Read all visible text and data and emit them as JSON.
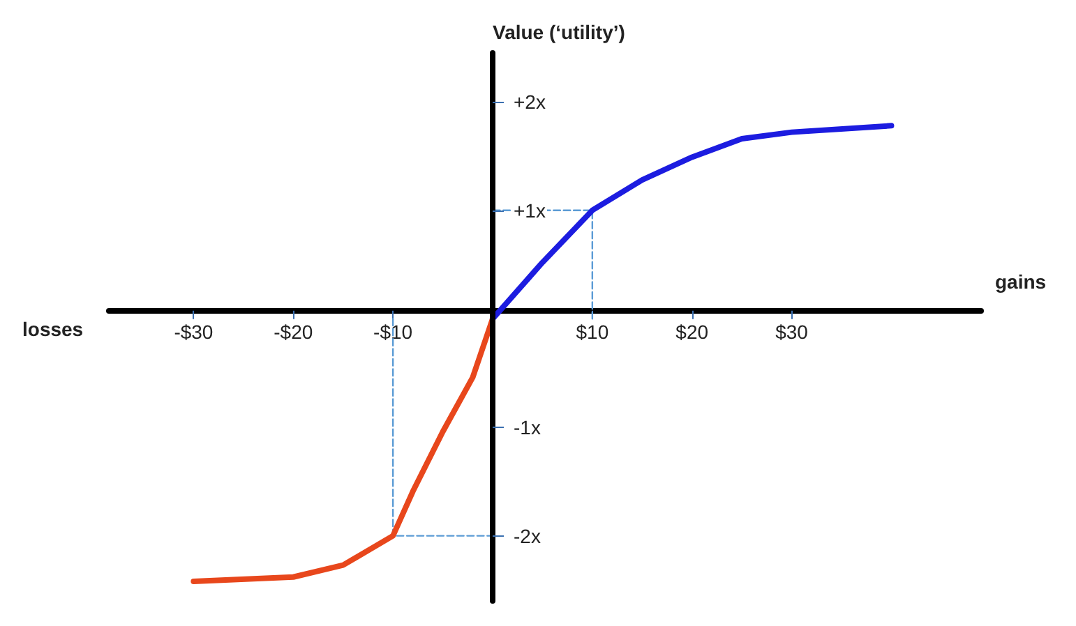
{
  "chart_data": {
    "type": "line",
    "xlabel": "gains",
    "ylabel": "Value (‘utility’)",
    "annotations": [
      "losses"
    ],
    "xlim": [
      -38.5,
      49
    ],
    "ylim": [
      -2.6,
      2.45
    ],
    "xticks": [
      {
        "value": -30,
        "label": "-$30"
      },
      {
        "value": -20,
        "label": "-$20"
      },
      {
        "value": -10,
        "label": "-$10"
      },
      {
        "value": 10,
        "label": "$10"
      },
      {
        "value": 20,
        "label": "$20"
      },
      {
        "value": 30,
        "label": "$30"
      }
    ],
    "yticks": [
      {
        "value": -2,
        "label": "-2x"
      },
      {
        "value": -1,
        "label": "-1x"
      },
      {
        "value": 1,
        "label": "+1x"
      },
      {
        "value": 2,
        "label": "+2x"
      }
    ],
    "grid": false,
    "marker": "none",
    "series": [
      {
        "color": "#1c1ce0",
        "x": [
          0,
          5,
          10,
          15,
          20,
          25,
          30,
          40
        ],
        "values": [
          0,
          0.52,
          1,
          1.28,
          1.49,
          1.66,
          1.72,
          1.78
        ],
        "line_style": "solid"
      },
      {
        "color": "#e8471c",
        "x": [
          -30,
          -20,
          -15,
          -10,
          -8,
          -5,
          -2,
          0
        ],
        "values": [
          -2.42,
          -2.38,
          -2.27,
          -2,
          -1.59,
          -1.04,
          -0.54,
          0
        ],
        "line_style": "solid"
      },
      {
        "color": "#5b9bd5",
        "x": [
          10,
          10,
          0
        ],
        "values": [
          0,
          1,
          1
        ],
        "line_style": "dashed"
      },
      {
        "color": "#5b9bd5",
        "x": [
          -10,
          -10,
          0
        ],
        "values": [
          0,
          -2,
          -2
        ],
        "line_style": "dashed"
      }
    ]
  }
}
